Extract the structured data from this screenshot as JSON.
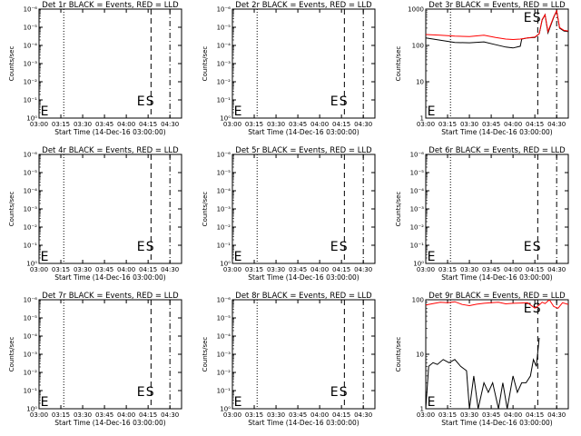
{
  "panels": [
    {
      "title": "Det 1r BLACK = Events, RED = LLD",
      "scale": "sci"
    },
    {
      "title": "Det 2r BLACK = Events, RED = LLD",
      "scale": "sci"
    },
    {
      "title": "Det 3r BLACK = Events, RED = LLD",
      "scale": "dec"
    },
    {
      "title": "Det 4r BLACK = Events, RED = LLD",
      "scale": "sci"
    },
    {
      "title": "Det 5r BLACK = Events, RED = LLD",
      "scale": "sci"
    },
    {
      "title": "Det 6r BLACK = Events, RED = LLD",
      "scale": "sci"
    },
    {
      "title": "Det 7r BLACK = Events, RED = LLD",
      "scale": "sci"
    },
    {
      "title": "Det 8r BLACK = Events, RED = LLD",
      "scale": "sci"
    },
    {
      "title": "Det 9r BLACK = Events, RED = LLD",
      "scale": "dec"
    }
  ],
  "xlabel": "Start Time (14-Dec-16 03:00:00)",
  "ylabel": "Counts/sec",
  "x_ticks": [
    "03:00",
    "03:15",
    "03:30",
    "03:45",
    "04:00",
    "04:15",
    "04:30"
  ],
  "y_ticks_sci": [
    "10⁰",
    "10⁻¹",
    "10⁻²",
    "10⁻³",
    "10⁻⁴",
    "10⁻⁵",
    "10⁻⁶"
  ],
  "y_ticks_dec": [
    "1",
    "10",
    "100",
    "1000"
  ],
  "markers": {
    "E": "E",
    "S": "S"
  },
  "colors": {
    "events": "#000000",
    "lld": "#ff0000",
    "axes": "#000000"
  },
  "chart_data": [
    {
      "type": "line",
      "title": "Det 1r BLACK = Events, RED = LLD",
      "xlabel": "Start Time (14-Dec-16 03:00:00)",
      "ylabel": "Counts/sec",
      "x_range": [
        "03:00",
        "04:38"
      ],
      "y_scale": "log",
      "series": []
    },
    {
      "type": "line",
      "title": "Det 2r BLACK = Events, RED = LLD",
      "xlabel": "Start Time (14-Dec-16 03:00:00)",
      "ylabel": "Counts/sec",
      "x_range": [
        "03:00",
        "04:38"
      ],
      "y_scale": "log",
      "series": []
    },
    {
      "type": "line",
      "title": "Det 3r BLACK = Events, RED = LLD",
      "xlabel": "Start Time (14-Dec-16 03:00:00)",
      "ylabel": "Counts/sec",
      "x_range": [
        "03:00",
        "04:38"
      ],
      "y_scale": "log",
      "ylim": [
        1,
        1000
      ],
      "series": [
        {
          "color": "#000000",
          "x": [
            "03:00",
            "03:10",
            "03:20",
            "03:30",
            "03:40",
            "03:48",
            "03:55",
            "04:00",
            "04:05",
            "04:06",
            "04:10",
            "04:15",
            "04:18",
            "04:20",
            "04:22",
            "04:24",
            "04:28",
            "04:30",
            "04:32",
            "04:35",
            "04:38"
          ],
          "values": [
            160,
            140,
            120,
            118,
            125,
            105,
            90,
            85,
            95,
            150,
            160,
            165,
            210,
            500,
            700,
            220,
            600,
            900,
            300,
            250,
            240
          ]
        },
        {
          "color": "#ff0000",
          "x": [
            "03:00",
            "03:10",
            "03:20",
            "03:30",
            "03:40",
            "03:48",
            "03:55",
            "04:00",
            "04:05",
            "04:10",
            "04:15",
            "04:18",
            "04:20",
            "04:22",
            "04:24",
            "04:28",
            "04:30",
            "04:32",
            "04:35",
            "04:38"
          ],
          "values": [
            200,
            190,
            180,
            175,
            190,
            165,
            150,
            145,
            150,
            160,
            170,
            210,
            520,
            700,
            240,
            620,
            900,
            310,
            260,
            250
          ]
        }
      ]
    },
    {
      "type": "line",
      "title": "Det 4r BLACK = Events, RED = LLD",
      "xlabel": "Start Time (14-Dec-16 03:00:00)",
      "ylabel": "Counts/sec",
      "x_range": [
        "03:00",
        "04:38"
      ],
      "y_scale": "log",
      "series": []
    },
    {
      "type": "line",
      "title": "Det 5r BLACK = Events, RED = LLD",
      "xlabel": "Start Time (14-Dec-16 03:00:00)",
      "ylabel": "Counts/sec",
      "x_range": [
        "03:00",
        "04:38"
      ],
      "y_scale": "log",
      "series": []
    },
    {
      "type": "line",
      "title": "Det 6r BLACK = Events, RED = LLD",
      "xlabel": "Start Time (14-Dec-16 03:00:00)",
      "ylabel": "Counts/sec",
      "x_range": [
        "03:00",
        "04:38"
      ],
      "y_scale": "log",
      "series": []
    },
    {
      "type": "line",
      "title": "Det 7r BLACK = Events, RED = LLD",
      "xlabel": "Start Time (14-Dec-16 03:00:00)",
      "ylabel": "Counts/sec",
      "x_range": [
        "03:00",
        "04:38"
      ],
      "y_scale": "log",
      "series": []
    },
    {
      "type": "line",
      "title": "Det 8r BLACK = Events, RED = LLD",
      "xlabel": "Start Time (14-Dec-16 03:00:00)",
      "ylabel": "Counts/sec",
      "x_range": [
        "03:00",
        "04:38"
      ],
      "y_scale": "log",
      "series": []
    },
    {
      "type": "line",
      "title": "Det 9r BLACK = Events, RED = LLD",
      "xlabel": "Start Time (14-Dec-16 03:00:00)",
      "ylabel": "Counts/sec",
      "x_range": [
        "03:00",
        "04:38"
      ],
      "y_scale": "log",
      "ylim": [
        1,
        100
      ],
      "series": [
        {
          "color": "#000000",
          "x": [
            "03:00",
            "03:02",
            "03:05",
            "03:08",
            "03:12",
            "03:16",
            "03:20",
            "03:24",
            "03:28",
            "03:30",
            "03:33",
            "03:36",
            "03:40",
            "03:43",
            "03:46",
            "03:50",
            "03:53",
            "03:56",
            "04:00",
            "04:03",
            "04:06",
            "04:09",
            "04:12",
            "04:14",
            "04:16",
            "04:18"
          ],
          "values": [
            1,
            6,
            7,
            6.5,
            8,
            7,
            8,
            6,
            5,
            1,
            4,
            1,
            3,
            2,
            3,
            1,
            3,
            1,
            4,
            2,
            3,
            3,
            4,
            8,
            6,
            20
          ]
        },
        {
          "color": "#ff0000",
          "x": [
            "03:00",
            "03:05",
            "03:10",
            "03:15",
            "03:20",
            "03:25",
            "03:30",
            "03:35",
            "03:40",
            "03:45",
            "03:50",
            "03:55",
            "04:00",
            "04:05",
            "04:10",
            "04:15",
            "04:18",
            "04:20",
            "04:22",
            "04:25",
            "04:28",
            "04:31",
            "04:34",
            "04:38"
          ],
          "values": [
            80,
            85,
            90,
            88,
            92,
            82,
            78,
            83,
            86,
            88,
            90,
            84,
            86,
            87,
            88,
            70,
            80,
            90,
            85,
            100,
            75,
            70,
            88,
            82
          ]
        }
      ]
    }
  ]
}
